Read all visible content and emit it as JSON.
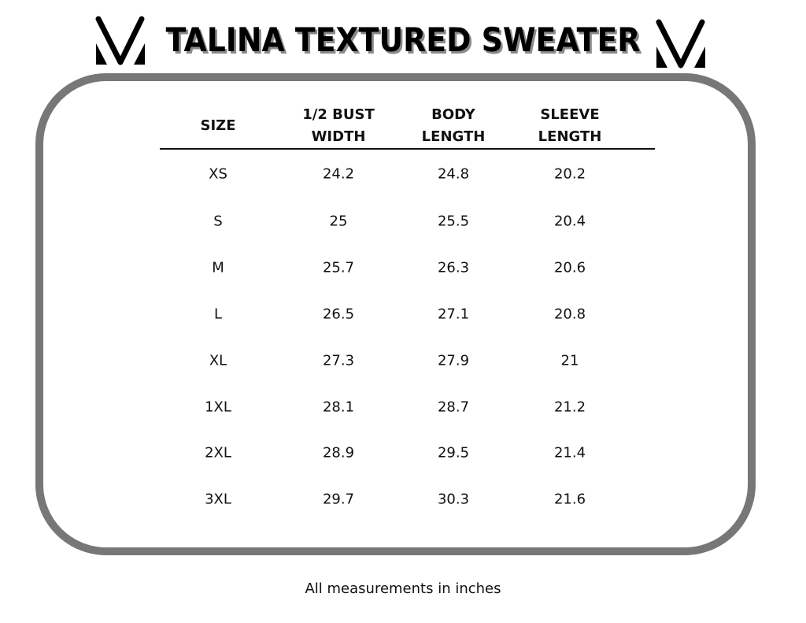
{
  "title": "TALINA TEXTURED SWEATER",
  "logo_icon": "v-brand-logo",
  "headers": [
    "SIZE",
    "1/2 BUST\nWIDTH",
    "BODY\nLENGTH",
    "SLEEVE\nLENGTH"
  ],
  "rows": [
    [
      "XS",
      "24.2",
      "24.8",
      "20.2"
    ],
    [
      "S",
      "25",
      "25.5",
      "20.4"
    ],
    [
      "M",
      "25.7",
      "26.3",
      "20.6"
    ],
    [
      "L",
      "26.5",
      "27.1",
      "20.8"
    ],
    [
      "XL",
      "27.3",
      "27.9",
      "21"
    ],
    [
      "1XL",
      "28.1",
      "28.7",
      "21.2"
    ],
    [
      "2XL",
      "28.9",
      "29.5",
      "21.4"
    ],
    [
      "3XL",
      "29.7",
      "30.3",
      "21.6"
    ]
  ],
  "note": "All measurements in inches",
  "colors": {
    "border": "#777777",
    "title_shadow": "#8a8a8a"
  }
}
